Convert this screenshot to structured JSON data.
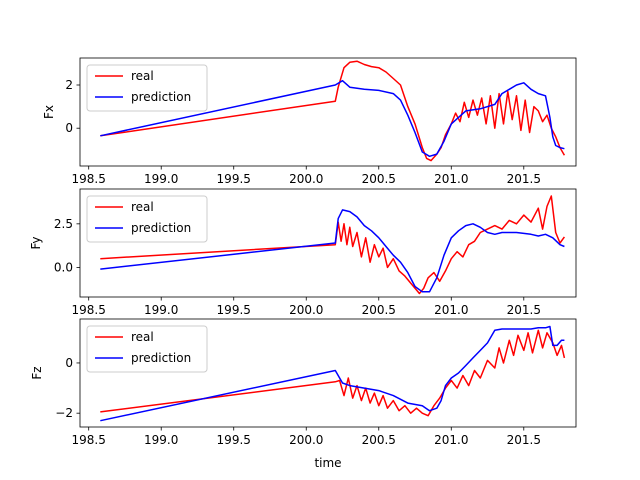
{
  "figure": {
    "xlabel": "time"
  },
  "chart_data": [
    {
      "type": "line",
      "ylabel": "Fx",
      "xlim": [
        198.44,
        201.86
      ],
      "ylim": [
        -1.75,
        3.25
      ],
      "xticks": [
        198.5,
        199.0,
        199.5,
        200.0,
        200.5,
        201.0,
        201.5
      ],
      "xtick_labels": [
        "198.5",
        "199.0",
        "199.5",
        "200.0",
        "200.5",
        "201.0",
        "201.5"
      ],
      "yticks": [
        0,
        2
      ],
      "ytick_labels": [
        "0",
        "2"
      ],
      "legend": {
        "position": "upper-left",
        "entries": [
          "real",
          "prediction"
        ]
      },
      "series": [
        {
          "name": "real",
          "color": "#ff0000",
          "x": [
            198.58,
            200.2,
            200.22,
            200.26,
            200.3,
            200.35,
            200.4,
            200.45,
            200.5,
            200.55,
            200.6,
            200.65,
            200.7,
            200.75,
            200.8,
            200.83,
            200.86,
            200.9,
            200.93,
            200.96,
            201.0,
            201.03,
            201.06,
            201.09,
            201.12,
            201.15,
            201.18,
            201.21,
            201.24,
            201.27,
            201.3,
            201.33,
            201.36,
            201.39,
            201.42,
            201.45,
            201.48,
            201.51,
            201.54,
            201.57,
            201.6,
            201.63,
            201.66,
            201.69,
            201.72,
            201.75,
            201.78
          ],
          "values": [
            -0.35,
            1.25,
            1.9,
            2.8,
            3.05,
            3.1,
            2.95,
            2.85,
            2.8,
            2.6,
            2.3,
            2.0,
            1.0,
            0.2,
            -0.9,
            -1.4,
            -1.5,
            -1.2,
            -0.9,
            -0.3,
            0.2,
            0.7,
            0.3,
            1.2,
            0.5,
            1.3,
            0.6,
            1.4,
            0.2,
            1.5,
            0.0,
            1.6,
            0.2,
            1.7,
            0.4,
            1.5,
            -0.1,
            1.3,
            -0.2,
            1.0,
            0.8,
            0.3,
            0.6,
            0.0,
            -0.4,
            -0.9,
            -1.25
          ]
        },
        {
          "name": "prediction",
          "color": "#0000ff",
          "x": [
            198.58,
            200.2,
            200.25,
            200.3,
            200.4,
            200.5,
            200.6,
            200.65,
            200.7,
            200.75,
            200.8,
            200.85,
            200.9,
            200.95,
            201.0,
            201.05,
            201.1,
            201.2,
            201.3,
            201.35,
            201.4,
            201.45,
            201.5,
            201.55,
            201.6,
            201.65,
            201.68,
            201.7,
            201.72,
            201.75,
            201.78
          ],
          "values": [
            -0.35,
            2.0,
            2.2,
            1.9,
            1.8,
            1.75,
            1.6,
            1.3,
            0.6,
            -0.2,
            -1.1,
            -1.3,
            -1.2,
            -0.6,
            0.2,
            0.5,
            0.8,
            0.9,
            1.1,
            1.6,
            1.8,
            2.0,
            2.1,
            1.8,
            1.6,
            1.5,
            0.5,
            -0.4,
            -0.8,
            -0.9,
            -0.95
          ]
        }
      ]
    },
    {
      "type": "line",
      "ylabel": "Fy",
      "xlim": [
        198.44,
        201.86
      ],
      "ylim": [
        -1.7,
        4.5
      ],
      "xticks": [
        198.5,
        199.0,
        199.5,
        200.0,
        200.5,
        201.0,
        201.5
      ],
      "xtick_labels": [
        "198.5",
        "199.0",
        "199.5",
        "200.0",
        "200.5",
        "201.0",
        "201.5"
      ],
      "yticks": [
        0.0,
        2.5
      ],
      "ytick_labels": [
        "0.0",
        "2.5"
      ],
      "legend": {
        "position": "upper-left",
        "entries": [
          "real",
          "prediction"
        ]
      },
      "series": [
        {
          "name": "real",
          "color": "#ff0000",
          "x": [
            198.58,
            200.2,
            200.22,
            200.24,
            200.26,
            200.28,
            200.3,
            200.32,
            200.35,
            200.38,
            200.41,
            200.44,
            200.47,
            200.5,
            200.53,
            200.56,
            200.6,
            200.64,
            200.68,
            200.72,
            200.76,
            200.78,
            200.81,
            200.84,
            200.88,
            200.92,
            200.96,
            201.0,
            201.04,
            201.08,
            201.12,
            201.16,
            201.2,
            201.25,
            201.3,
            201.35,
            201.4,
            201.45,
            201.5,
            201.55,
            201.6,
            201.63,
            201.66,
            201.69,
            201.72,
            201.75,
            201.78
          ],
          "values": [
            0.5,
            1.3,
            2.6,
            1.5,
            2.5,
            1.3,
            2.3,
            1.2,
            2.0,
            0.6,
            1.7,
            0.3,
            1.3,
            0.6,
            1.1,
            0.0,
            0.5,
            -0.2,
            -0.5,
            -0.9,
            -1.3,
            -1.5,
            -1.2,
            -0.6,
            -0.3,
            -0.8,
            -0.2,
            0.5,
            0.9,
            0.6,
            1.3,
            1.5,
            2.0,
            2.2,
            2.4,
            2.2,
            2.7,
            2.5,
            3.0,
            2.6,
            3.4,
            2.2,
            3.5,
            4.1,
            2.0,
            1.4,
            1.75
          ]
        },
        {
          "name": "prediction",
          "color": "#0000ff",
          "x": [
            198.58,
            200.2,
            200.22,
            200.25,
            200.3,
            200.35,
            200.4,
            200.45,
            200.5,
            200.55,
            200.6,
            200.65,
            200.7,
            200.75,
            200.8,
            200.85,
            200.9,
            200.95,
            201.0,
            201.05,
            201.1,
            201.15,
            201.2,
            201.25,
            201.3,
            201.35,
            201.4,
            201.45,
            201.5,
            201.55,
            201.6,
            201.65,
            201.7,
            201.75,
            201.78
          ],
          "values": [
            -0.1,
            1.4,
            2.8,
            3.3,
            3.2,
            2.9,
            2.4,
            2.1,
            1.7,
            1.2,
            0.7,
            0.3,
            -0.3,
            -1.1,
            -1.4,
            -1.4,
            -0.6,
            0.7,
            1.7,
            2.1,
            2.4,
            2.5,
            2.3,
            2.0,
            1.9,
            2.0,
            2.0,
            2.0,
            1.95,
            1.9,
            1.8,
            1.9,
            1.7,
            1.3,
            1.2
          ]
        }
      ]
    },
    {
      "type": "line",
      "ylabel": "Fz",
      "xlim": [
        198.44,
        201.86
      ],
      "ylim": [
        -2.55,
        1.75
      ],
      "xticks": [
        198.5,
        199.0,
        199.5,
        200.0,
        200.5,
        201.0,
        201.5
      ],
      "xtick_labels": [
        "198.5",
        "199.0",
        "199.5",
        "200.0",
        "200.5",
        "201.0",
        "201.5"
      ],
      "yticks": [
        -2,
        0
      ],
      "ytick_labels": [
        "−2",
        "0"
      ],
      "legend": {
        "position": "upper-left",
        "entries": [
          "real",
          "prediction"
        ]
      },
      "series": [
        {
          "name": "real",
          "color": "#ff0000",
          "x": [
            198.58,
            200.2,
            200.23,
            200.26,
            200.29,
            200.32,
            200.35,
            200.38,
            200.41,
            200.44,
            200.47,
            200.5,
            200.53,
            200.56,
            200.6,
            200.64,
            200.68,
            200.72,
            200.76,
            200.8,
            200.84,
            200.88,
            200.92,
            200.96,
            201.0,
            201.04,
            201.08,
            201.12,
            201.16,
            201.2,
            201.25,
            201.3,
            201.33,
            201.36,
            201.4,
            201.43,
            201.46,
            201.5,
            201.53,
            201.56,
            201.6,
            201.63,
            201.66,
            201.7,
            201.73,
            201.76,
            201.78
          ],
          "values": [
            -1.95,
            -0.75,
            -0.7,
            -1.3,
            -0.6,
            -1.4,
            -0.9,
            -1.5,
            -1.0,
            -1.6,
            -1.2,
            -1.7,
            -1.3,
            -1.8,
            -1.5,
            -1.9,
            -1.7,
            -2.0,
            -1.8,
            -2.0,
            -2.1,
            -1.7,
            -1.4,
            -1.0,
            -0.7,
            -1.0,
            -0.5,
            -0.9,
            -0.3,
            -0.6,
            0.1,
            -0.2,
            0.6,
            0.0,
            0.9,
            0.3,
            1.1,
            0.5,
            1.2,
            0.4,
            1.3,
            0.6,
            1.2,
            0.8,
            0.3,
            0.7,
            0.2
          ]
        },
        {
          "name": "prediction",
          "color": "#0000ff",
          "x": [
            198.58,
            200.2,
            200.25,
            200.3,
            200.4,
            200.5,
            200.6,
            200.7,
            200.8,
            200.85,
            200.9,
            200.93,
            200.96,
            201.0,
            201.05,
            201.1,
            201.15,
            201.2,
            201.25,
            201.3,
            201.35,
            201.4,
            201.45,
            201.5,
            201.55,
            201.6,
            201.65,
            201.68,
            201.7,
            201.73,
            201.76,
            201.78
          ],
          "values": [
            -2.3,
            -0.3,
            -0.8,
            -0.9,
            -1.0,
            -1.1,
            -1.3,
            -1.6,
            -1.7,
            -1.9,
            -1.8,
            -1.5,
            -0.9,
            -0.6,
            -0.4,
            -0.1,
            0.2,
            0.5,
            0.8,
            1.3,
            1.35,
            1.35,
            1.35,
            1.35,
            1.35,
            1.4,
            1.4,
            1.45,
            0.7,
            0.7,
            0.9,
            0.9
          ]
        }
      ]
    }
  ]
}
